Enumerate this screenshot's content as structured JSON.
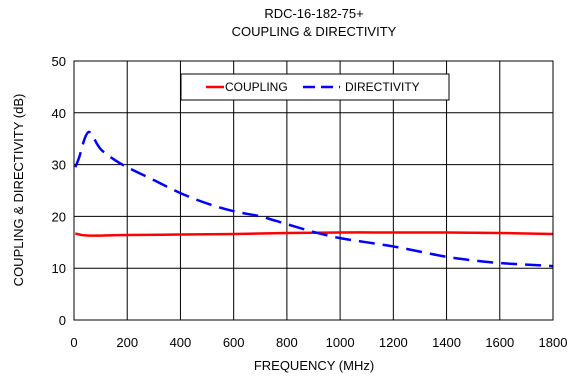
{
  "chart_data": {
    "type": "line",
    "title": "RDC-16-182-75+",
    "subtitle": "COUPLING & DIRECTIVITY",
    "xlabel": "FREQUENCY (MHz)",
    "ylabel": "COUPLING & DIRECTIVITY (dB)",
    "xlim": [
      0,
      1800
    ],
    "ylim": [
      0,
      50
    ],
    "x_ticks": [
      "0",
      "200",
      "400",
      "600",
      "800",
      "1000",
      "1200",
      "1400",
      "1600",
      "1800"
    ],
    "y_ticks": [
      "0",
      "10",
      "20",
      "30",
      "40",
      "50"
    ],
    "grid": true,
    "legend_position": "top-center",
    "series": [
      {
        "name": "COUPLING",
        "color": "#ff0000",
        "style": "solid",
        "x": [
          5,
          30,
          60,
          100,
          200,
          400,
          600,
          800,
          1000,
          1200,
          1400,
          1600,
          1800
        ],
        "y": [
          16.7,
          16.4,
          16.3,
          16.3,
          16.4,
          16.5,
          16.6,
          16.8,
          16.9,
          16.9,
          16.9,
          16.8,
          16.6
        ]
      },
      {
        "name": "DIRECTIVITY",
        "color": "#0000ff",
        "style": "dashed",
        "x": [
          5,
          20,
          40,
          55,
          70,
          100,
          150,
          200,
          300,
          400,
          500,
          600,
          700,
          800,
          900,
          1000,
          1100,
          1200,
          1300,
          1400,
          1500,
          1600,
          1700,
          1800
        ],
        "y": [
          29.5,
          31.5,
          35.0,
          36.3,
          35.5,
          33.0,
          31.0,
          29.5,
          27.0,
          24.5,
          22.5,
          21.0,
          20.0,
          18.5,
          17.0,
          15.8,
          15.0,
          14.2,
          13.2,
          12.2,
          11.5,
          11.0,
          10.7,
          10.4
        ]
      }
    ]
  }
}
